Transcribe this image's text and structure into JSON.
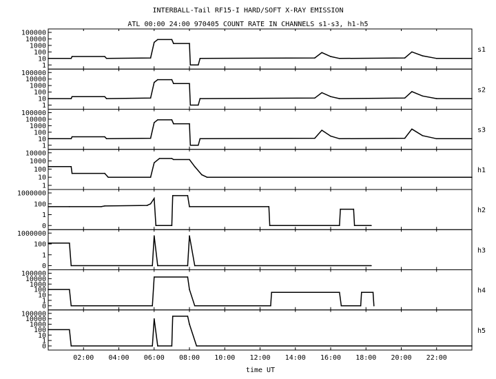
{
  "chart_data": {
    "type": "line",
    "title": "INTERBALL-Tail RF15-I HARD/SOFT X-RAY EMISSION",
    "subtitle": "ATL 00:00 24:00 970405  COUNT RATE IN CHANNELS s1-s3, h1-h5",
    "xlabel": "time UT",
    "x_unit": "hours",
    "xlim": [
      0,
      24
    ],
    "x_ticks": [
      {
        "t": 2,
        "label": "02:00"
      },
      {
        "t": 4,
        "label": "04:00"
      },
      {
        "t": 6,
        "label": "06:00"
      },
      {
        "t": 8,
        "label": "08:00"
      },
      {
        "t": 10,
        "label": "10:00"
      },
      {
        "t": 12,
        "label": "12:00"
      },
      {
        "t": 14,
        "label": "14:00"
      },
      {
        "t": 16,
        "label": "16:00"
      },
      {
        "t": 18,
        "label": "18:00"
      },
      {
        "t": 20,
        "label": "20:00"
      },
      {
        "t": 22,
        "label": "22:00"
      }
    ],
    "y_scale": "log",
    "grid": false,
    "panels": [
      {
        "name": "s1",
        "y_ticks": [
          "100000",
          "10000",
          "1000",
          "100",
          "10",
          "1"
        ],
        "series": [
          {
            "t": 0.0,
            "v": 10
          },
          {
            "t": 1.3,
            "v": 10
          },
          {
            "t": 1.35,
            "v": 20
          },
          {
            "t": 3.2,
            "v": 20
          },
          {
            "t": 3.3,
            "v": 10
          },
          {
            "t": 5.8,
            "v": 12
          },
          {
            "t": 6.0,
            "v": 3000
          },
          {
            "t": 6.2,
            "v": 8000
          },
          {
            "t": 7.0,
            "v": 8000
          },
          {
            "t": 7.1,
            "v": 2000
          },
          {
            "t": 8.0,
            "v": 2000
          },
          {
            "t": 8.05,
            "v": 1
          },
          {
            "t": 8.5,
            "v": 1
          },
          {
            "t": 8.6,
            "v": 10
          },
          {
            "t": 15.1,
            "v": 12
          },
          {
            "t": 15.5,
            "v": 80
          },
          {
            "t": 16.0,
            "v": 20
          },
          {
            "t": 16.5,
            "v": 10
          },
          {
            "t": 20.2,
            "v": 12
          },
          {
            "t": 20.6,
            "v": 100
          },
          {
            "t": 21.2,
            "v": 25
          },
          {
            "t": 22.0,
            "v": 10
          },
          {
            "t": 24.0,
            "v": 10
          }
        ]
      },
      {
        "name": "s2",
        "y_ticks": [
          "100000",
          "10000",
          "1000",
          "100",
          "10",
          "1"
        ],
        "series": [
          {
            "t": 0.0,
            "v": 10
          },
          {
            "t": 1.3,
            "v": 10
          },
          {
            "t": 1.35,
            "v": 20
          },
          {
            "t": 3.2,
            "v": 20
          },
          {
            "t": 3.3,
            "v": 10
          },
          {
            "t": 5.8,
            "v": 12
          },
          {
            "t": 6.0,
            "v": 3000
          },
          {
            "t": 6.2,
            "v": 8000
          },
          {
            "t": 7.0,
            "v": 8000
          },
          {
            "t": 7.1,
            "v": 2000
          },
          {
            "t": 8.0,
            "v": 2000
          },
          {
            "t": 8.05,
            "v": 1
          },
          {
            "t": 8.5,
            "v": 1
          },
          {
            "t": 8.6,
            "v": 10
          },
          {
            "t": 15.1,
            "v": 12
          },
          {
            "t": 15.5,
            "v": 80
          },
          {
            "t": 16.0,
            "v": 20
          },
          {
            "t": 16.5,
            "v": 10
          },
          {
            "t": 20.2,
            "v": 12
          },
          {
            "t": 20.6,
            "v": 120
          },
          {
            "t": 21.2,
            "v": 25
          },
          {
            "t": 22.0,
            "v": 10
          },
          {
            "t": 24.0,
            "v": 10
          }
        ]
      },
      {
        "name": "s3",
        "y_ticks": [
          "100000",
          "10000",
          "1000",
          "100",
          "10",
          "1"
        ],
        "series": [
          {
            "t": 0.0,
            "v": 10
          },
          {
            "t": 1.3,
            "v": 10
          },
          {
            "t": 1.35,
            "v": 20
          },
          {
            "t": 3.2,
            "v": 20
          },
          {
            "t": 3.3,
            "v": 10
          },
          {
            "t": 5.8,
            "v": 12
          },
          {
            "t": 6.0,
            "v": 3000
          },
          {
            "t": 6.2,
            "v": 8000
          },
          {
            "t": 7.0,
            "v": 8000
          },
          {
            "t": 7.1,
            "v": 2000
          },
          {
            "t": 8.0,
            "v": 2000
          },
          {
            "t": 8.05,
            "v": 1
          },
          {
            "t": 8.5,
            "v": 1
          },
          {
            "t": 8.6,
            "v": 10
          },
          {
            "t": 15.1,
            "v": 12
          },
          {
            "t": 15.5,
            "v": 200
          },
          {
            "t": 16.0,
            "v": 25
          },
          {
            "t": 16.5,
            "v": 10
          },
          {
            "t": 20.2,
            "v": 12
          },
          {
            "t": 20.6,
            "v": 300
          },
          {
            "t": 21.2,
            "v": 30
          },
          {
            "t": 22.0,
            "v": 10
          },
          {
            "t": 24.0,
            "v": 10
          }
        ]
      },
      {
        "name": "h1",
        "y_ticks": [
          "10000",
          "1000",
          "100",
          "10",
          "1"
        ],
        "series": [
          {
            "t": 0.0,
            "v": 200
          },
          {
            "t": 1.3,
            "v": 200
          },
          {
            "t": 1.35,
            "v": 30
          },
          {
            "t": 3.2,
            "v": 30
          },
          {
            "t": 3.4,
            "v": 10
          },
          {
            "t": 5.8,
            "v": 10
          },
          {
            "t": 6.0,
            "v": 600
          },
          {
            "t": 6.3,
            "v": 2000
          },
          {
            "t": 7.0,
            "v": 2000
          },
          {
            "t": 7.1,
            "v": 1500
          },
          {
            "t": 8.0,
            "v": 1500
          },
          {
            "t": 8.3,
            "v": 200
          },
          {
            "t": 8.7,
            "v": 20
          },
          {
            "t": 9.0,
            "v": 10
          },
          {
            "t": 24.0,
            "v": 10
          }
        ]
      },
      {
        "name": "h2",
        "y_ticks": [
          "1000000",
          "100",
          "1",
          "0"
        ],
        "series": [
          {
            "t": 0.0,
            "v": 30
          },
          {
            "t": 1.2,
            "v": 30
          },
          {
            "t": 3.0,
            "v": 30
          },
          {
            "t": 3.2,
            "v": 40
          },
          {
            "t": 5.6,
            "v": 50
          },
          {
            "t": 5.8,
            "v": 100
          },
          {
            "t": 6.0,
            "v": 10000
          },
          {
            "t": 6.1,
            "v": 0
          },
          {
            "t": 7.0,
            "v": 0
          },
          {
            "t": 7.05,
            "v": 100000
          },
          {
            "t": 7.9,
            "v": 100000
          },
          {
            "t": 8.0,
            "v": 30
          },
          {
            "t": 12.5,
            "v": 30
          },
          {
            "t": 12.55,
            "v": 0
          },
          {
            "t": 16.5,
            "v": 0
          },
          {
            "t": 16.55,
            "v": 10
          },
          {
            "t": 17.3,
            "v": 10
          },
          {
            "t": 17.35,
            "v": 0
          },
          {
            "t": 18.3,
            "v": 0
          }
        ]
      },
      {
        "name": "h3",
        "y_ticks": [
          "1000000",
          "100",
          "1",
          "0"
        ],
        "series": [
          {
            "t": 0.0,
            "v": 200
          },
          {
            "t": 1.2,
            "v": 200
          },
          {
            "t": 1.3,
            "v": 0
          },
          {
            "t": 5.9,
            "v": 0
          },
          {
            "t": 6.0,
            "v": 100000
          },
          {
            "t": 6.2,
            "v": 0
          },
          {
            "t": 7.9,
            "v": 0
          },
          {
            "t": 8.0,
            "v": 100000
          },
          {
            "t": 8.3,
            "v": 0
          },
          {
            "t": 18.3,
            "v": 0
          }
        ]
      },
      {
        "name": "h4",
        "y_ticks": [
          "100000",
          "10000",
          "1000",
          "100",
          "10",
          "1",
          "0"
        ],
        "series": [
          {
            "t": 0.0,
            "v": 100
          },
          {
            "t": 1.2,
            "v": 100
          },
          {
            "t": 1.3,
            "v": 0
          },
          {
            "t": 5.9,
            "v": 0
          },
          {
            "t": 6.0,
            "v": 20000
          },
          {
            "t": 7.9,
            "v": 20000
          },
          {
            "t": 8.0,
            "v": 100
          },
          {
            "t": 8.3,
            "v": 0
          },
          {
            "t": 12.6,
            "v": 0
          },
          {
            "t": 12.65,
            "v": 30
          },
          {
            "t": 16.5,
            "v": 30
          },
          {
            "t": 16.6,
            "v": 0
          },
          {
            "t": 17.7,
            "v": 0
          },
          {
            "t": 17.75,
            "v": 30
          },
          {
            "t": 18.4,
            "v": 30
          },
          {
            "t": 18.45,
            "v": 0
          }
        ]
      },
      {
        "name": "h5",
        "y_ticks": [
          "100000",
          "10000",
          "1000",
          "100",
          "10",
          "1",
          "0"
        ],
        "series": [
          {
            "t": 0.0,
            "v": 100
          },
          {
            "t": 1.2,
            "v": 100
          },
          {
            "t": 1.3,
            "v": 0
          },
          {
            "t": 5.9,
            "v": 0
          },
          {
            "t": 6.0,
            "v": 10000
          },
          {
            "t": 6.2,
            "v": 0
          },
          {
            "t": 7.0,
            "v": 0
          },
          {
            "t": 7.05,
            "v": 30000
          },
          {
            "t": 7.9,
            "v": 30000
          },
          {
            "t": 8.0,
            "v": 1000
          },
          {
            "t": 8.4,
            "v": 0
          },
          {
            "t": 24.0,
            "v": 0
          }
        ]
      }
    ]
  }
}
